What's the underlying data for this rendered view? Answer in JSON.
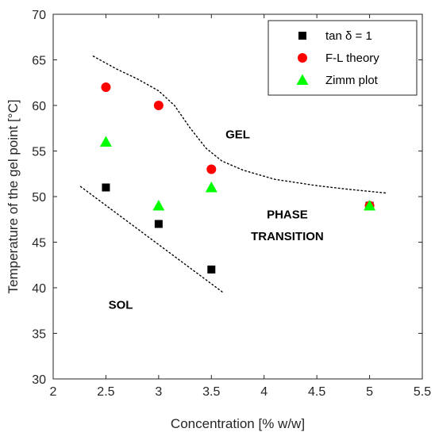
{
  "chart_data": {
    "type": "scatter",
    "title": "",
    "xlabel": "Concentration [% w/w]",
    "ylabel": "Temperature of the gel point [°C]",
    "xlim": [
      2,
      5.5
    ],
    "ylim": [
      30,
      70
    ],
    "xticks": [
      2,
      2.5,
      3,
      3.5,
      4,
      4.5,
      5,
      5.5
    ],
    "xtick_labels": [
      "2",
      "2.5",
      "3",
      "3.5",
      "4",
      "4.5",
      "5",
      "5.5"
    ],
    "yticks": [
      30,
      35,
      40,
      45,
      50,
      55,
      60,
      65,
      70
    ],
    "ytick_labels": [
      "30",
      "35",
      "40",
      "45",
      "50",
      "55",
      "60",
      "65",
      "70"
    ],
    "grid": false,
    "legend_position": "top-right",
    "series": [
      {
        "name": "tan δ = 1",
        "marker": "square",
        "color": "#000000",
        "x": [
          2.5,
          3,
          3.5,
          5
        ],
        "y": [
          51,
          47,
          42,
          49
        ]
      },
      {
        "name": "F-L theory",
        "marker": "circle",
        "color": "#ff0000",
        "x": [
          2.5,
          3,
          3.5,
          5
        ],
        "y": [
          62,
          60,
          53,
          49
        ]
      },
      {
        "name": "Zimm plot",
        "marker": "triangle",
        "color": "#00ff00",
        "x": [
          2.5,
          3,
          3.5,
          5
        ],
        "y": [
          56,
          49,
          51,
          49
        ]
      }
    ],
    "boundaries": [
      {
        "style": "dotted",
        "x": [
          2.38,
          2.6,
          2.8,
          3.0,
          3.15,
          3.3,
          3.45,
          3.6,
          3.8,
          4.1,
          4.5,
          4.8,
          5.15
        ],
        "y": [
          65.4,
          64.0,
          62.9,
          61.6,
          60.0,
          57.5,
          55.3,
          53.9,
          52.9,
          51.9,
          51.2,
          50.8,
          50.4
        ]
      },
      {
        "style": "dotted",
        "x": [
          2.26,
          3.62
        ],
        "y": [
          51.1,
          39.4
        ]
      }
    ],
    "annotations": [
      {
        "text": "GEL",
        "x": 3.75,
        "y": 56.4
      },
      {
        "text": "PHASE",
        "x": 4.22,
        "y": 47.6
      },
      {
        "text": "TRANSITION",
        "x": 4.22,
        "y": 45.2
      },
      {
        "text": "SOL",
        "x": 2.64,
        "y": 37.7
      }
    ]
  }
}
